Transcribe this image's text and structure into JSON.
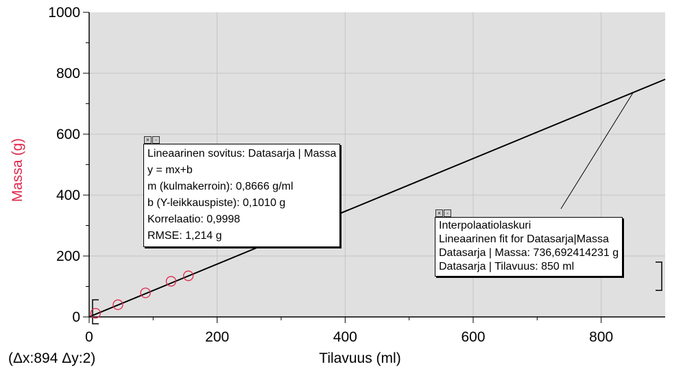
{
  "chart_data": {
    "type": "scatter",
    "xlabel": "Tilavuus (ml)",
    "ylabel": "Massa (g)",
    "xlim": [
      0,
      900
    ],
    "ylim": [
      0,
      1000
    ],
    "x_ticks": [
      "0",
      "200",
      "400",
      "600",
      "800"
    ],
    "y_ticks": [
      "0",
      "200",
      "400",
      "600",
      "800",
      "1000"
    ],
    "grid": true,
    "points": [
      {
        "x": 10,
        "y": 12
      },
      {
        "x": 45,
        "y": 40
      },
      {
        "x": 88,
        "y": 79
      },
      {
        "x": 128,
        "y": 117
      },
      {
        "x": 155,
        "y": 135
      }
    ],
    "fit": {
      "slope": 0.8666,
      "intercept": 0.101
    },
    "interpolation_point": {
      "x": 850,
      "y": 736.692414231
    },
    "colors": {
      "plot_bg": "#e0e0e0",
      "grid": "#c4c4c4",
      "marker": "#e0284a",
      "ylabel": "#e0284a",
      "line": "#000000"
    }
  },
  "fit_box": {
    "lines": [
      "Lineaarinen sovitus: Datasarja | Massa",
      "y = mx+b",
      "m (kulmakerroin): 0,8666 g/ml",
      "b (Y-leikkauspiste): 0,1010 g",
      "Korrelaatio: 0,9998",
      "RMSE: 1,214 g"
    ]
  },
  "interp_box": {
    "lines": [
      "Interpolaatiolaskuri",
      "Lineaarinen fit for Datasarja|Massa",
      "Datasarja | Massa: 736,692414231 g",
      "Datasarja | Tilavuus: 850 ml"
    ]
  },
  "delta_text": "(Δx:894 Δy:2)"
}
